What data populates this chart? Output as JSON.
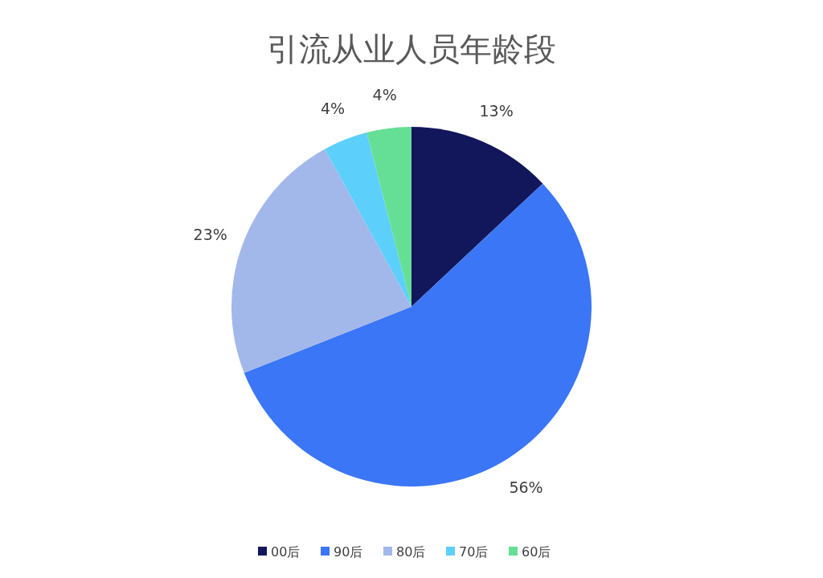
{
  "chart_data": {
    "type": "pie",
    "title": "引流从业人员年龄段",
    "categories": [
      "00后",
      "90后",
      "80后",
      "70后",
      "60后"
    ],
    "values": [
      13,
      56,
      23,
      4,
      4
    ],
    "colors": [
      "#12175c",
      "#3a76f5",
      "#a3b8ea",
      "#5dcffb",
      "#66df96"
    ],
    "value_labels": [
      "13%",
      "56%",
      "23%",
      "4%",
      "4%"
    ],
    "legend": "bottom"
  }
}
